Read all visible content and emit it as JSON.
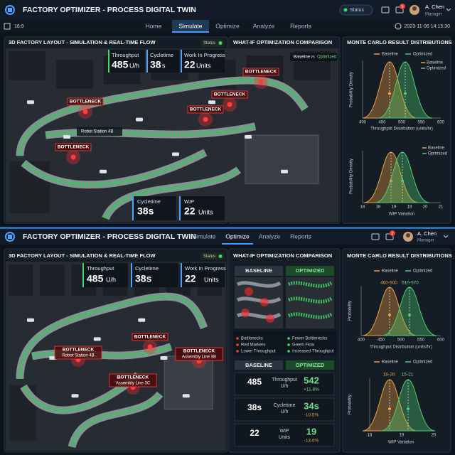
{
  "top": {
    "header": {
      "title": "FACTORY OPTIMIZER - PROCESS DIGITAL TWIN",
      "status": "Status",
      "badge": "5",
      "user": "A. Chen",
      "role": "Manager"
    },
    "nav": {
      "aspect": "16:9",
      "tabs": [
        "Home",
        "Simulate",
        "Optimize",
        "Analyze",
        "Reports"
      ],
      "timestamp": "2023-11-06 14:15:30"
    },
    "layout_panel": {
      "title": "3D FACTORY LAYOUT - SIMULATION & REAL-TIME FLOW",
      "status": "Status",
      "kpis": [
        {
          "label": "Throughput",
          "value": "485",
          "unit": "U/h"
        },
        {
          "label": "Cycletime",
          "value": "38",
          "unit": "s"
        },
        {
          "label": "Work In Progress",
          "value": "22",
          "unit": "Units"
        }
      ],
      "markers": [
        "BOTTLENECK",
        "BOTTLENECK",
        "BOTTLENECK",
        "BOTTLENECK",
        "BOTTLENECK"
      ],
      "station": "Robot Station 4B",
      "bottom_kpis": [
        {
          "label": "Cycletime",
          "value": "38s"
        },
        {
          "label": "WIP",
          "value": "22",
          "unit": "Units"
        }
      ]
    },
    "comparison_panel": {
      "title": "WHAT-IF OPTIMIZATION COMPARISON",
      "legend": [
        "Baseline",
        "vs",
        "Optimized"
      ]
    },
    "distribution_panel": {
      "title": "MONTE CARLO RESULT DISTRIBUTIONS",
      "charts": [
        {
          "legend": [
            "Baseline",
            "Optimized"
          ],
          "key": [
            "Baseline",
            "Optimized"
          ],
          "y_label": "Probability Density",
          "x_ticks": [
            "400",
            "450",
            "500",
            "550",
            "600"
          ],
          "x_label": "Throughput Distribution (units/hr)"
        },
        {
          "key": [
            "Baseline",
            "Optimized"
          ],
          "y_label": "Probability Density",
          "x_ticks": [
            "18",
            "18",
            "19",
            "19",
            "20",
            "21"
          ],
          "x_label": "WIP Variation"
        }
      ]
    }
  },
  "bottom": {
    "header": {
      "title": "FACTORY OPTIMIZER - PROCESS DIGITAL TWIN",
      "tabs": [
        "Simulate",
        "Optimize",
        "Analyze",
        "Reports"
      ],
      "badge": "2",
      "user": "A. Chen",
      "role": "Manager"
    },
    "layout_panel": {
      "title": "3D FACTORY LAYOUT - SIMULATION & REAL-TIME FLOW",
      "status": "Status",
      "kpis": [
        {
          "label": "Throughput",
          "value": "485",
          "unit": "U/h"
        },
        {
          "label": "Cycletime",
          "value": "38s"
        },
        {
          "label": "Work In Progress",
          "value": "22",
          "unit": "Units"
        }
      ],
      "markers": [
        {
          "label": "BOTTLENECK"
        },
        {
          "label": "BOTTLENECK",
          "sub": "Robot Station 4B"
        },
        {
          "label": "BOTTLENECK",
          "sub": "Assembly Line 3B"
        },
        {
          "label": "BOTTLENECK",
          "sub": "Assembly Line 3C"
        }
      ]
    },
    "comparison_panel": {
      "title": "WHAT-IF OPTIMIZATION COMPARISON",
      "baseline": "BASELINE",
      "optimized": "OPTIMIZED",
      "baseline_notes": [
        "Bottlenecks",
        "Red Markers",
        "Lower Throughput"
      ],
      "optimized_notes": [
        "Fewer Bottlenecks",
        "Green Flow",
        "Increased Throughput"
      ],
      "table": {
        "header": [
          "BASELINE",
          "OPTIMIZED"
        ],
        "rows": [
          {
            "baseline": "485",
            "metric": "Throughput",
            "unit": "U/h",
            "optimized": "542",
            "change": "+11.8%"
          },
          {
            "baseline": "38s",
            "metric": "Cycletime",
            "unit": "U/h",
            "optimized": "34s",
            "change": "-10.5%"
          },
          {
            "baseline": "22",
            "metric": "WIP",
            "unit": "Units",
            "optimized": "19",
            "change": "-13.6%"
          }
        ]
      }
    },
    "distribution_panel": {
      "title": "MONTE CARLO RESULT DISTRIBUTIONS",
      "charts": [
        {
          "legend": [
            "Baseline",
            "Optimized"
          ],
          "ranges": [
            "460-500",
            "510-570"
          ],
          "y_label": "Probability",
          "x_ticks": [
            "400",
            "450",
            "500",
            "550",
            "600"
          ],
          "x_label": "Throughput Distribution (units/hr)"
        },
        {
          "legend": [
            "Baseline",
            "Optimized"
          ],
          "ranges": [
            "18-26",
            "15-21"
          ],
          "y_label": "Probability",
          "x_ticks": [
            "18",
            "19",
            "20"
          ],
          "x_label": "WIP Variation"
        }
      ]
    }
  }
}
